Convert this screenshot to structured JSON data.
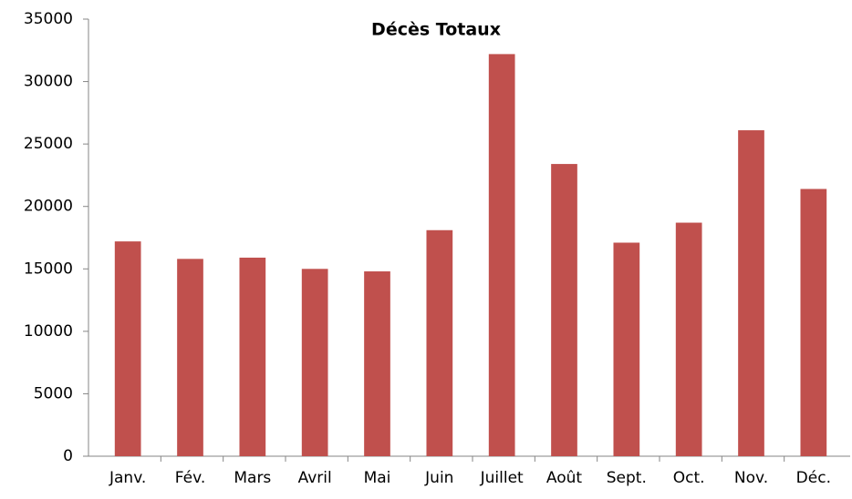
{
  "chart_data": {
    "type": "bar",
    "title": "Décès Totaux",
    "categories": [
      "Janv.",
      "Fév.",
      "Mars",
      "Avril",
      "Mai",
      "Juin",
      "Juillet",
      "Août",
      "Sept.",
      "Oct.",
      "Nov.",
      "Déc."
    ],
    "values": [
      17200,
      15800,
      15900,
      15000,
      14800,
      18100,
      32200,
      23400,
      17100,
      18700,
      26100,
      21400
    ],
    "color": "#c0504d",
    "ylim": [
      0,
      35000
    ],
    "yticks": [
      0,
      5000,
      10000,
      15000,
      20000,
      25000,
      30000,
      35000
    ],
    "grid": false
  }
}
